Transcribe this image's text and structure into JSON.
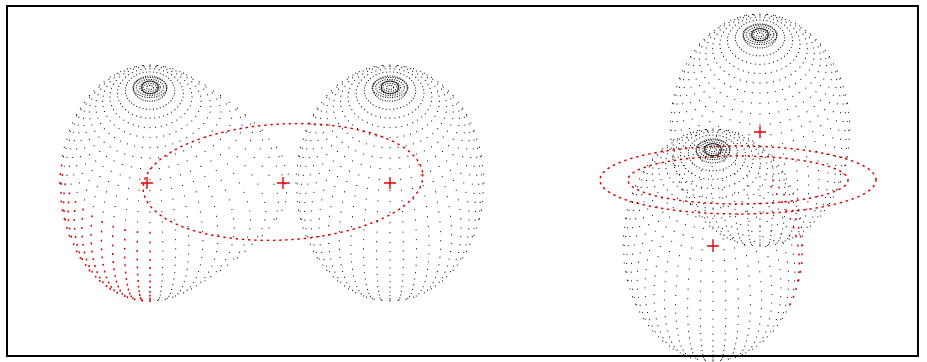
{
  "figure": {
    "panels": [
      {
        "id": "left",
        "description_shown": false,
        "bodies": [
          {
            "name": "distorted-star",
            "shape": "teardrop",
            "spot": "filled-red-patch"
          },
          {
            "name": "companion-star",
            "shape": "sphere",
            "spot": "none"
          }
        ],
        "orbit": "dotted-ellipse",
        "center_of_mass_marker": "+"
      },
      {
        "id": "right",
        "bodies": [
          {
            "name": "back-star",
            "shape": "sphere",
            "spot": "none"
          },
          {
            "name": "front-star",
            "shape": "sphere",
            "spot": "red-limb-band"
          }
        ],
        "orbit": "dotted-ellipse",
        "center_of_mass_marker": "+"
      }
    ],
    "colors": {
      "mesh": "#000000",
      "highlight": "#e00000",
      "orbit": "#e00000",
      "frame": "#000000"
    }
  }
}
